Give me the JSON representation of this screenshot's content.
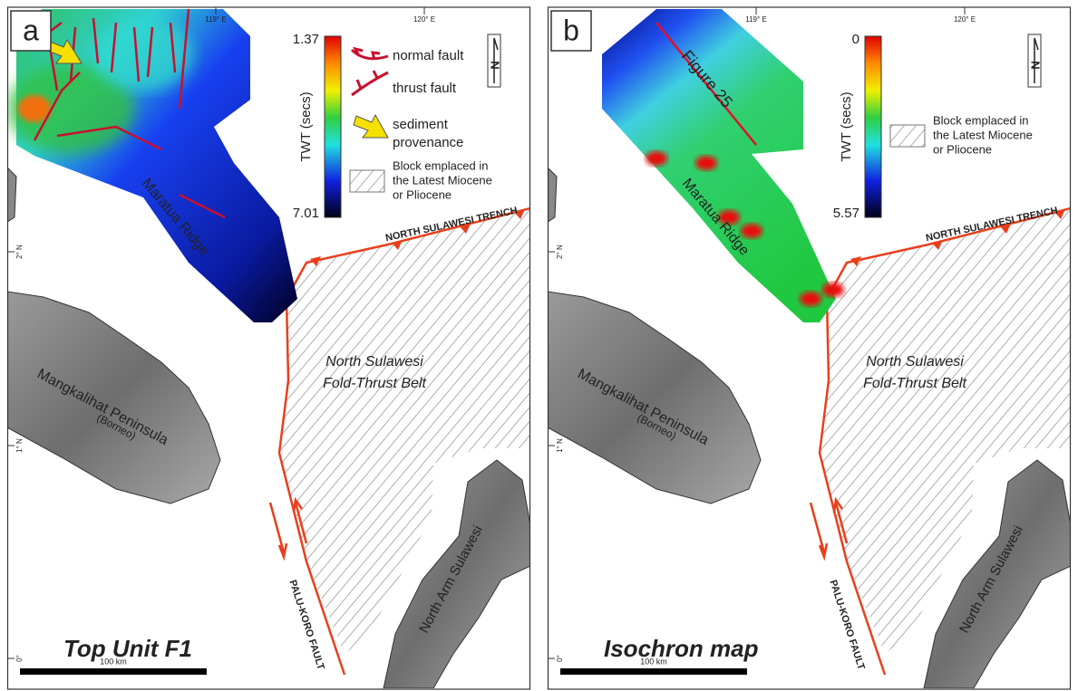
{
  "panels": [
    {
      "label": "a",
      "lon_ticks": [
        "119° E",
        "120° E"
      ],
      "lat_ticks": [
        "2° N",
        "1° N",
        "0°"
      ],
      "colorbar": {
        "max": "1.37",
        "min": "7.01",
        "title": "TWT (secs)"
      },
      "legend": {
        "normal_fault": "normal fault",
        "thrust_fault": "thrust fault",
        "sediment_provenance": [
          "sediment",
          "provenance"
        ],
        "block": [
          "Block emplaced in",
          "the Latest Miocene",
          "or Pliocene"
        ]
      },
      "north": "N",
      "labels": {
        "ridge": "Maratua Ridge",
        "trench": "NORTH SULAWESI TRENCH",
        "belt": [
          "North Sulawesi",
          "Fold-Thrust Belt"
        ],
        "peninsula": "Mangkalihat Peninsula",
        "borneo": "(Borneo)",
        "fault": "PALU-KORO FAULT",
        "arm": "North Arm Sulawesi"
      },
      "caption": "Top Unit F1",
      "scale": "100 km"
    },
    {
      "label": "b",
      "lon_ticks": [
        "119° E",
        "120° E"
      ],
      "lat_ticks": [
        "2° N",
        "1° N",
        "0°"
      ],
      "colorbar": {
        "max": "0",
        "min": "5.57",
        "title": "TWT (secs)"
      },
      "legend": {
        "block": [
          "Block emplaced in",
          "the Latest Miocene",
          "or Pliocene"
        ]
      },
      "north": "N",
      "profile": "Figure 25",
      "labels": {
        "ridge": "Maratua Ridge",
        "trench": "NORTH SULAWESI TRENCH",
        "belt": [
          "North Sulawesi",
          "Fold-Thrust Belt"
        ],
        "peninsula": "Mangkalihat Peninsula",
        "borneo": "(Borneo)",
        "fault": "PALU-KORO FAULT",
        "arm": "North Arm Sulawesi"
      },
      "caption": "Isochron map",
      "scale": "100 km"
    }
  ]
}
